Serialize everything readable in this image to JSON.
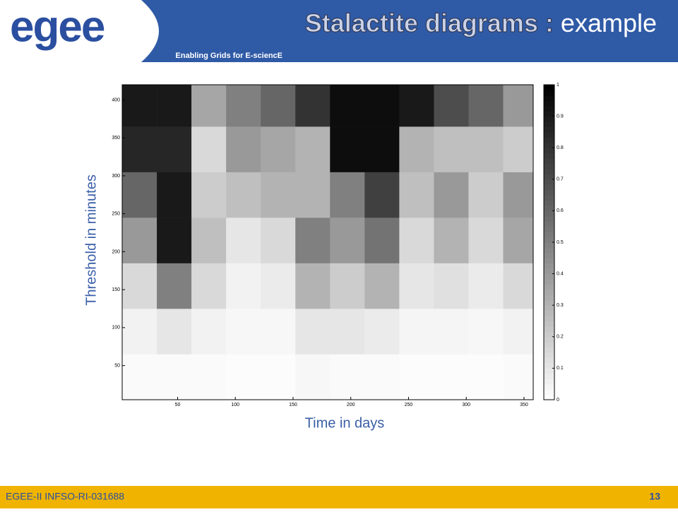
{
  "header": {
    "logo": "egee",
    "tagline": "Enabling Grids for E-sciencE",
    "title_bold": "Stalactite diagrams : ",
    "title_rest": "example"
  },
  "chart_data": {
    "type": "heatmap",
    "x_label": "Time in days",
    "y_label": "Threshold in minutes",
    "x_bins": [
      2,
      32,
      62,
      92,
      122,
      152,
      182,
      212,
      242,
      272,
      302,
      332,
      358
    ],
    "y_bins": [
      5,
      65,
      125,
      185,
      245,
      305,
      365,
      420
    ],
    "values": [
      [
        0.02,
        0.02,
        0.02,
        0.01,
        0.01,
        0.03,
        0.02,
        0.02,
        0.01,
        0.01,
        0.01,
        0.02
      ],
      [
        0.05,
        0.1,
        0.05,
        0.03,
        0.03,
        0.1,
        0.1,
        0.08,
        0.04,
        0.04,
        0.03,
        0.05
      ],
      [
        0.15,
        0.5,
        0.15,
        0.05,
        0.08,
        0.3,
        0.2,
        0.3,
        0.1,
        0.12,
        0.08,
        0.15
      ],
      [
        0.4,
        0.9,
        0.25,
        0.1,
        0.15,
        0.5,
        0.4,
        0.55,
        0.15,
        0.3,
        0.15,
        0.35
      ],
      [
        0.6,
        0.9,
        0.2,
        0.25,
        0.3,
        0.3,
        0.5,
        0.75,
        0.25,
        0.4,
        0.2,
        0.4
      ],
      [
        0.85,
        0.85,
        0.15,
        0.4,
        0.35,
        0.3,
        0.95,
        0.95,
        0.3,
        0.25,
        0.25,
        0.2
      ],
      [
        0.9,
        0.9,
        0.35,
        0.5,
        0.6,
        0.8,
        0.95,
        0.95,
        0.9,
        0.7,
        0.6,
        0.4
      ]
    ],
    "xlim": [
      2,
      358
    ],
    "ylim": [
      5,
      420
    ],
    "xticks": [
      50,
      100,
      150,
      200,
      250,
      300,
      350
    ],
    "yticks": [
      50,
      100,
      150,
      200,
      250,
      300,
      350,
      400
    ],
    "clim": [
      0,
      1
    ],
    "cticks": [
      0,
      0.1,
      0.2,
      0.3,
      0.4,
      0.5,
      0.6,
      0.7,
      0.8,
      0.9,
      1
    ],
    "colormap": "gray_reversed"
  },
  "footer": {
    "id": "EGEE-II INFSO-RI-031688",
    "page": 13
  }
}
